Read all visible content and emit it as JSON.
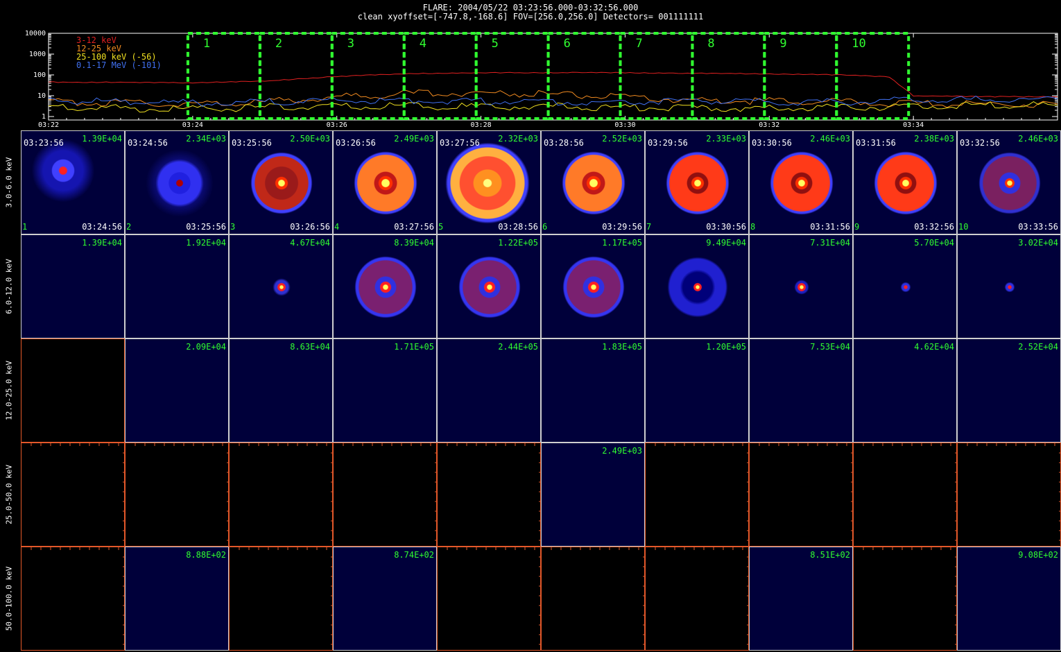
{
  "header": {
    "title": "FLARE: 2004/05/22 03:23:56.000-03:32:56.000",
    "subtitle": "clean    xyoffset=[-747.8,-168.6]   FOV=[256.0,256.0]    Detectors= 001111111"
  },
  "chart_data": [
    {
      "type": "line",
      "name": "lightcurve",
      "yscale": "log",
      "ylim": [
        1,
        10000
      ],
      "ytick_labels": [
        "10000",
        "1000",
        "100",
        "10",
        "1"
      ],
      "xtick_labels": [
        "03:22",
        "03:24",
        "03:26",
        "03:28",
        "03:30",
        "03:32",
        "03:34"
      ],
      "x_range": [
        "03:22",
        "03:36"
      ],
      "legend_position": "top-left",
      "series": [
        {
          "name": "3-12 keV",
          "color": "#e02020",
          "x": [
            "03:22",
            "03:23",
            "03:24",
            "03:25",
            "03:26",
            "03:27",
            "03:28",
            "03:29",
            "03:30",
            "03:31",
            "03:32",
            "03:33",
            "03:33:40",
            "03:34",
            "03:35",
            "03:36"
          ],
          "values": [
            45,
            44,
            42,
            50,
            85,
            115,
            125,
            130,
            128,
            120,
            112,
            100,
            80,
            10,
            9,
            9
          ]
        },
        {
          "name": "12-25 keV",
          "color": "#f08a20",
          "x": [
            "03:22",
            "03:23",
            "03:24",
            "03:25",
            "03:26",
            "03:27",
            "03:28",
            "03:29",
            "03:30",
            "03:31",
            "03:32",
            "03:33",
            "03:34",
            "03:35",
            "03:36"
          ],
          "values": [
            5,
            4.5,
            4,
            5,
            9,
            13,
            14,
            12,
            8,
            6,
            5.5,
            5,
            4,
            4,
            4
          ]
        },
        {
          "name": "25-100 keV (-56)",
          "color": "#f0e020",
          "x": [
            "03:22",
            "03:23",
            "03:24",
            "03:25",
            "03:26",
            "03:27",
            "03:28",
            "03:29",
            "03:30",
            "03:31",
            "03:32",
            "03:33",
            "03:34",
            "03:35",
            "03:36"
          ],
          "values": [
            3,
            2.5,
            2.2,
            2.8,
            3,
            3.2,
            3,
            3,
            2.8,
            2.5,
            2.5,
            2.8,
            3,
            3.5,
            3.5
          ]
        },
        {
          "name": "0.1-17 MeV (-101)",
          "color": "#4070f0",
          "x": [
            "03:22",
            "03:23",
            "03:24",
            "03:25",
            "03:26",
            "03:27",
            "03:28",
            "03:29",
            "03:30",
            "03:31",
            "03:32",
            "03:33",
            "03:34",
            "03:35",
            "03:36"
          ],
          "values": [
            6,
            5,
            4.5,
            5,
            6,
            6,
            5.5,
            5,
            5,
            5.5,
            5,
            5,
            6,
            6.5,
            7
          ]
        }
      ],
      "intervals": {
        "labels": [
          "1",
          "2",
          "3",
          "4",
          "5",
          "6",
          "7",
          "8",
          "9",
          "10"
        ],
        "boundaries": [
          "03:23:56",
          "03:24:56",
          "03:25:56",
          "03:26:56",
          "03:27:56",
          "03:28:56",
          "03:29:56",
          "03:30:56",
          "03:31:56",
          "03:32:56",
          "03:33:56"
        ],
        "color": "#30ff30"
      }
    },
    {
      "type": "heatmap",
      "name": "image-grid",
      "energy_bands": [
        "3.0-6.0 keV",
        "6.0-12.0 keV",
        "12.0-25.0 keV",
        "25.0-50.0 keV",
        "50.0-100.0 keV"
      ],
      "interval_numbers": [
        "1",
        "2",
        "3",
        "4",
        "5",
        "6",
        "7",
        "8",
        "9",
        "10"
      ],
      "start_times": [
        "03:23:56",
        "03:24:56",
        "03:25:56",
        "03:26:56",
        "03:27:56",
        "03:28:56",
        "03:29:56",
        "03:30:56",
        "03:31:56",
        "03:32:56"
      ],
      "end_times": [
        "03:24:56",
        "03:25:56",
        "03:26:56",
        "03:27:56",
        "03:28:56",
        "03:29:56",
        "03:30:56",
        "03:31:56",
        "03:32:56",
        "03:33:56"
      ],
      "max_values": [
        [
          "1.39E+04",
          "2.34E+03",
          "2.50E+03",
          "2.49E+03",
          "2.32E+03",
          "2.52E+03",
          "2.33E+03",
          "2.46E+03",
          "2.38E+03",
          "2.46E+03"
        ],
        [
          "1.39E+04",
          "1.92E+04",
          "4.67E+04",
          "8.39E+04",
          "1.22E+05",
          "1.17E+05",
          "9.49E+04",
          "7.31E+04",
          "5.70E+04",
          "3.02E+04"
        ],
        [
          "",
          "2.09E+04",
          "8.63E+04",
          "1.71E+05",
          "2.44E+05",
          "1.83E+05",
          "1.20E+05",
          "7.53E+04",
          "4.62E+04",
          "2.52E+04"
        ],
        [
          "",
          "",
          "",
          "",
          "",
          "2.49E+03",
          "",
          "",
          "",
          ""
        ],
        [
          "",
          "8.88E+02",
          "",
          "8.74E+02",
          "",
          "",
          "",
          "8.51E+02",
          "",
          "9.08E+02"
        ]
      ],
      "colors": {
        "value_label": "#30ff30",
        "empty_axis": "#e4582a"
      }
    }
  ]
}
